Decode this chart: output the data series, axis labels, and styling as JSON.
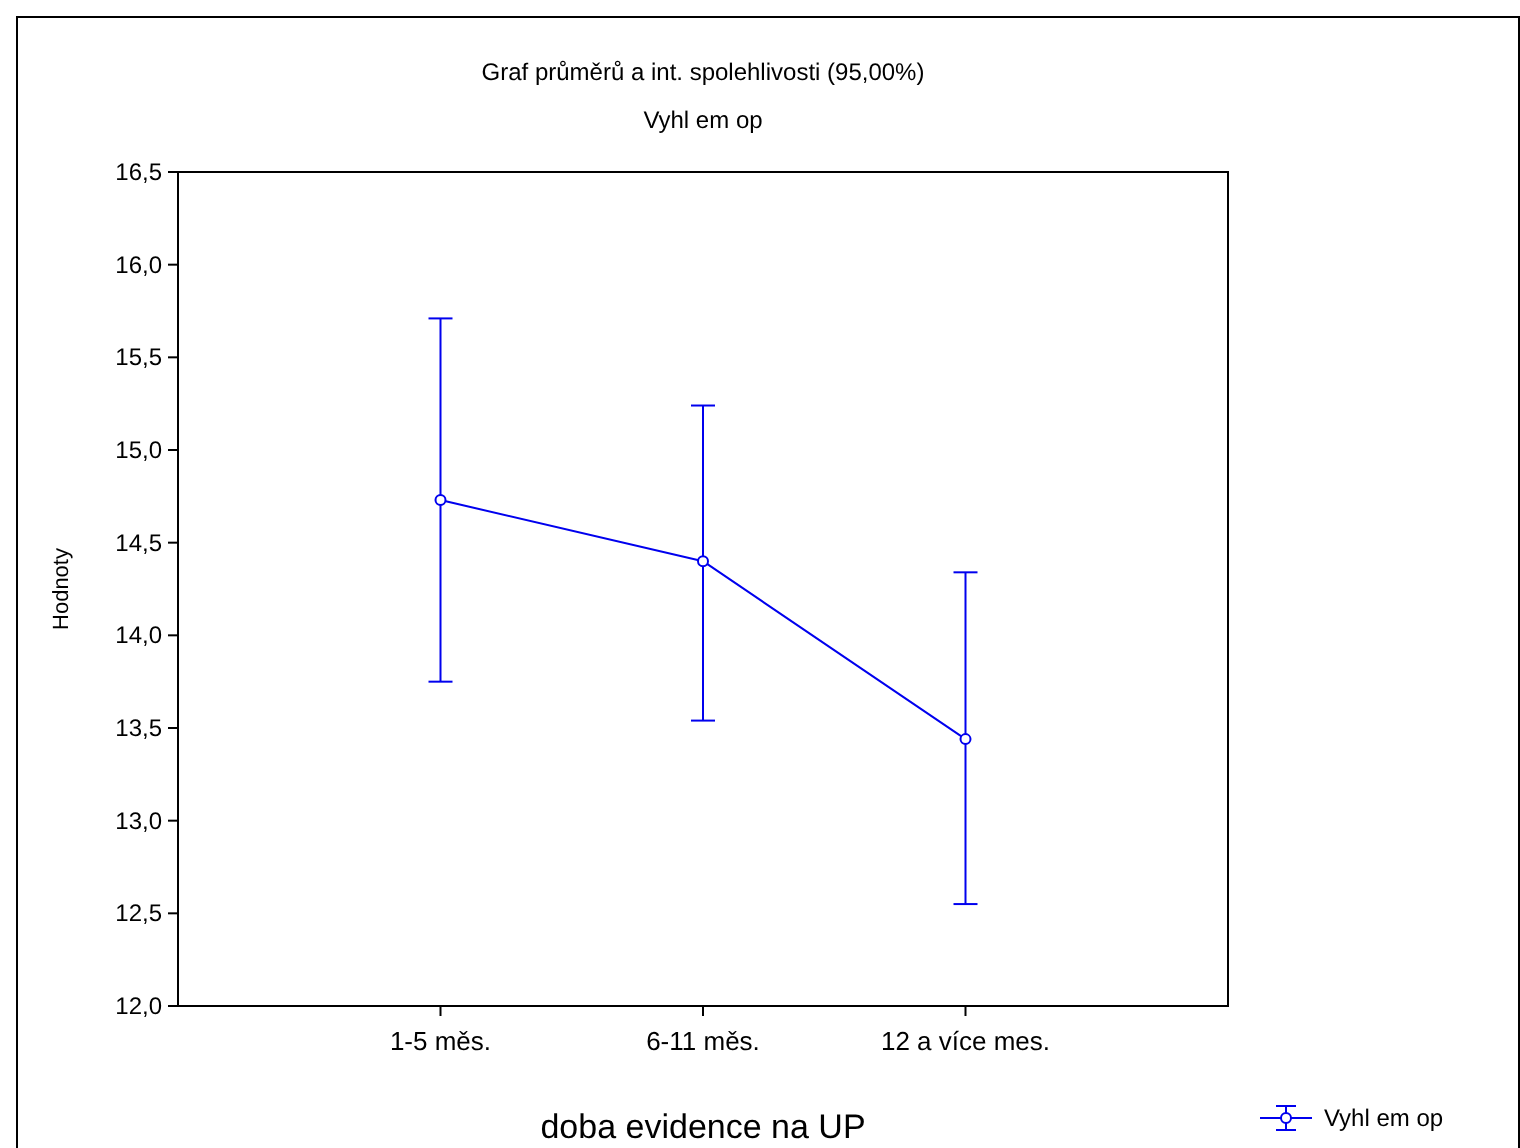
{
  "chart_data": {
    "type": "line",
    "title": "Graf průměrů a int. spolehlivosti (95,00%)",
    "subtitle": "Vyhl em op",
    "xlabel": "doba evidence na UP",
    "ylabel": "Hodnoty",
    "categories": [
      "1-5 měs.",
      "6-11 měs.",
      "12 a více mes."
    ],
    "series": [
      {
        "name": "Vyhl em op",
        "color": "#0000ee",
        "values": [
          14.73,
          14.4,
          13.44
        ],
        "errors": [
          [
            13.75,
            15.71
          ],
          [
            13.54,
            15.24
          ],
          [
            12.55,
            14.34
          ]
        ]
      }
    ],
    "ylim": [
      12,
      16.5
    ],
    "yticks": [
      {
        "value": 12,
        "label": "12,0"
      },
      {
        "value": 12.5,
        "label": "12,5"
      },
      {
        "value": 13,
        "label": "13,0"
      },
      {
        "value": 13.5,
        "label": "13,5"
      },
      {
        "value": 14,
        "label": "14,0"
      },
      {
        "value": 14.5,
        "label": "14,5"
      },
      {
        "value": 15,
        "label": "15,0"
      },
      {
        "value": 15.5,
        "label": "15,5"
      },
      {
        "value": 16,
        "label": "16,0"
      },
      {
        "value": 16.5,
        "label": "16,5"
      }
    ],
    "grid": false,
    "legend": "bottom right",
    "marker": "circle",
    "line_style": "solid"
  }
}
